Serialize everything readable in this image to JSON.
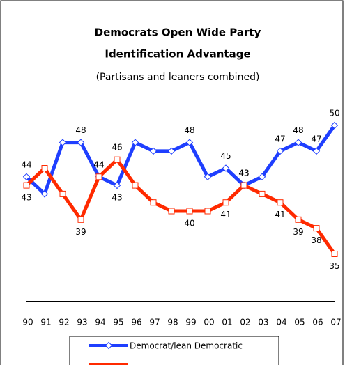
{
  "chart_data": {
    "type": "line",
    "title": "Democrats Open Wide Party",
    "subtitle_title": "Identification Advantage",
    "subtitle": "(Partisans and leaners combined)",
    "categories": [
      "90",
      "91",
      "92",
      "93",
      "94",
      "95",
      "96",
      "97",
      "98",
      "99",
      "00",
      "01",
      "02",
      "03",
      "04",
      "05",
      "06",
      "07"
    ],
    "series": [
      {
        "name": "Democrat/lean Democratic",
        "color": "#1f3fff",
        "values": [
          44,
          42,
          48,
          48,
          44,
          43,
          48,
          47,
          47,
          48,
          44,
          45,
          43,
          44,
          47,
          48,
          47,
          50
        ],
        "value_labels": [
          "44",
          null,
          null,
          "48",
          "44",
          "43",
          null,
          null,
          null,
          "48",
          null,
          "45",
          "43",
          null,
          "47",
          "48",
          "47",
          "50"
        ]
      },
      {
        "color": "#ff2a00",
        "values": [
          43,
          45,
          42,
          39,
          44,
          46,
          43,
          41,
          40,
          40,
          40,
          41,
          43,
          42,
          41,
          39,
          38,
          35
        ],
        "value_labels": [
          "43",
          null,
          null,
          "39",
          "44",
          "46",
          null,
          null,
          null,
          "40",
          null,
          "41",
          "43",
          null,
          "41",
          "39",
          "38",
          "35"
        ]
      }
    ],
    "ylim": [
      34,
      51
    ]
  }
}
